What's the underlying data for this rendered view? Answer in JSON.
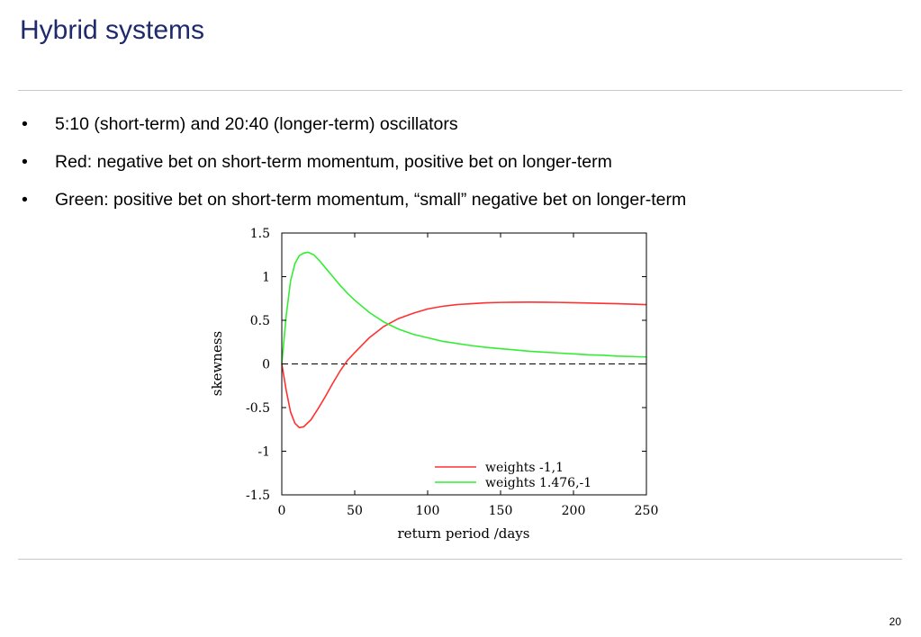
{
  "slide": {
    "title": "Hybrid systems",
    "bullets": [
      "5:10 (short-term) and 20:40 (longer-term) oscillators",
      "Red: negative bet on short-term momentum, positive bet on longer-term",
      "Green: positive bet on short-term momentum, “small” negative bet on longer-term"
    ],
    "bullet_marker": "•",
    "page_number": "20"
  },
  "chart_data": {
    "type": "line",
    "xlabel": "return period /days",
    "ylabel": "skewness",
    "xlim": [
      0,
      250
    ],
    "ylim": [
      -1.5,
      1.5
    ],
    "x_ticks": [
      "0",
      "50",
      "100",
      "150",
      "200",
      "250"
    ],
    "y_ticks": [
      "1.5",
      "1",
      "0.5",
      "0",
      "-0.5",
      "-1",
      "-1.5"
    ],
    "grid": false,
    "legend_position": "bottom-right",
    "zero_line": true,
    "series": [
      {
        "name": "weights -1,1",
        "color": "#ff3030",
        "x": [
          0,
          3,
          6,
          9,
          12,
          15,
          20,
          25,
          30,
          35,
          40,
          45,
          50,
          60,
          70,
          80,
          90,
          100,
          110,
          120,
          130,
          140,
          150,
          160,
          170,
          180,
          190,
          200,
          210,
          220,
          230,
          240,
          250
        ],
        "y": [
          0,
          -0.3,
          -0.55,
          -0.68,
          -0.73,
          -0.72,
          -0.64,
          -0.51,
          -0.37,
          -0.22,
          -0.08,
          0.04,
          0.13,
          0.3,
          0.43,
          0.52,
          0.58,
          0.63,
          0.66,
          0.68,
          0.69,
          0.7,
          0.705,
          0.707,
          0.708,
          0.707,
          0.705,
          0.702,
          0.698,
          0.694,
          0.69,
          0.685,
          0.68
        ]
      },
      {
        "name": "weights 1.476,-1",
        "color": "#33ee33",
        "x": [
          0,
          3,
          6,
          9,
          12,
          15,
          18,
          22,
          26,
          30,
          35,
          40,
          45,
          50,
          60,
          70,
          80,
          90,
          100,
          110,
          120,
          130,
          140,
          150,
          160,
          170,
          180,
          190,
          200,
          210,
          220,
          230,
          240,
          250
        ],
        "y": [
          0,
          0.55,
          0.95,
          1.15,
          1.24,
          1.27,
          1.28,
          1.25,
          1.18,
          1.1,
          1.0,
          0.9,
          0.81,
          0.73,
          0.59,
          0.48,
          0.4,
          0.34,
          0.3,
          0.26,
          0.235,
          0.21,
          0.19,
          0.175,
          0.16,
          0.145,
          0.135,
          0.125,
          0.115,
          0.105,
          0.1,
          0.09,
          0.085,
          0.08
        ]
      }
    ]
  }
}
